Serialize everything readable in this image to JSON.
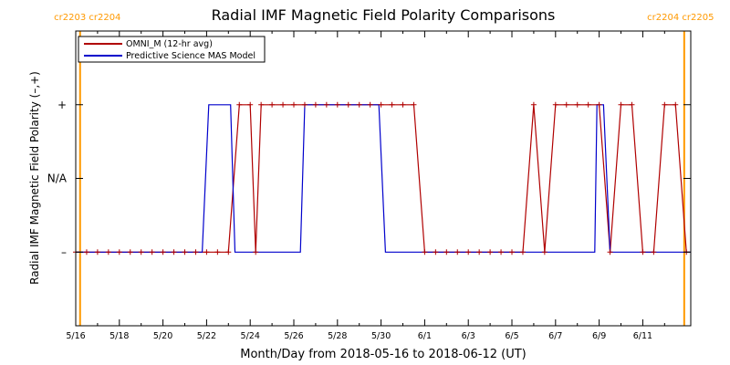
{
  "chart_data": {
    "type": "line",
    "title": "Radial IMF Magnetic Field Polarity Comparisons",
    "xlabel": "Month/Day from 2018-05-16 to 2018-06-12 (UT)",
    "ylabel": "Radial IMF Magnetic Field Polarity (–,+)",
    "x_range_days": [
      0,
      28.2
    ],
    "x_ticks": [
      {
        "day": 0,
        "label": "5/16"
      },
      {
        "day": 2,
        "label": "5/18"
      },
      {
        "day": 4,
        "label": "5/20"
      },
      {
        "day": 6,
        "label": "5/22"
      },
      {
        "day": 8,
        "label": "5/24"
      },
      {
        "day": 10,
        "label": "5/26"
      },
      {
        "day": 12,
        "label": "5/28"
      },
      {
        "day": 14,
        "label": "5/30"
      },
      {
        "day": 16,
        "label": "6/1"
      },
      {
        "day": 18,
        "label": "6/3"
      },
      {
        "day": 20,
        "label": "6/5"
      },
      {
        "day": 22,
        "label": "6/7"
      },
      {
        "day": 24,
        "label": "6/9"
      },
      {
        "day": 26,
        "label": "6/11"
      }
    ],
    "y_range": [
      -2,
      2
    ],
    "y_ticks": [
      {
        "value": 1,
        "label": "+"
      },
      {
        "value": 0,
        "label": "N/A"
      },
      {
        "value": -1,
        "label": "–"
      }
    ],
    "legend_position": "top-left",
    "colors": {
      "omni": "#b00000",
      "model": "#0000cc",
      "cr_line": "#ff9900"
    },
    "carrington_boundaries": [
      {
        "day": 0.2,
        "label": "cr2203 cr2204"
      },
      {
        "day": 27.9,
        "label": "cr2204 cr2205"
      }
    ],
    "series": [
      {
        "name": "OMNI_M (12-hr avg)",
        "color": "#b00000",
        "markers": true,
        "points": [
          [
            0.0,
            -1
          ],
          [
            0.5,
            -1
          ],
          [
            1.0,
            -1
          ],
          [
            1.5,
            -1
          ],
          [
            2.0,
            -1
          ],
          [
            2.5,
            -1
          ],
          [
            3.0,
            -1
          ],
          [
            3.5,
            -1
          ],
          [
            4.0,
            -1
          ],
          [
            4.5,
            -1
          ],
          [
            5.0,
            -1
          ],
          [
            5.5,
            -1
          ],
          [
            6.0,
            -1
          ],
          [
            6.5,
            -1
          ],
          [
            7.0,
            -1
          ],
          [
            7.5,
            1
          ],
          [
            8.0,
            1
          ],
          [
            8.25,
            -1
          ],
          [
            8.5,
            1
          ],
          [
            9.0,
            1
          ],
          [
            9.5,
            1
          ],
          [
            10.0,
            1
          ],
          [
            10.5,
            1
          ],
          [
            11.0,
            1
          ],
          [
            11.5,
            1
          ],
          [
            12.0,
            1
          ],
          [
            12.5,
            1
          ],
          [
            13.0,
            1
          ],
          [
            13.5,
            1
          ],
          [
            14.0,
            1
          ],
          [
            14.5,
            1
          ],
          [
            15.0,
            1
          ],
          [
            15.5,
            1
          ],
          [
            16.0,
            -1
          ],
          [
            16.5,
            -1
          ],
          [
            17.0,
            -1
          ],
          [
            17.5,
            -1
          ],
          [
            18.0,
            -1
          ],
          [
            18.5,
            -1
          ],
          [
            19.0,
            -1
          ],
          [
            19.5,
            -1
          ],
          [
            20.0,
            -1
          ],
          [
            20.5,
            -1
          ],
          [
            21.0,
            1
          ],
          [
            21.5,
            -1
          ],
          [
            22.0,
            1
          ],
          [
            22.5,
            1
          ],
          [
            23.0,
            1
          ],
          [
            23.5,
            1
          ],
          [
            24.0,
            1
          ],
          [
            24.5,
            -1
          ],
          [
            25.0,
            1
          ],
          [
            25.5,
            1
          ],
          [
            26.0,
            -1
          ],
          [
            26.5,
            -1
          ],
          [
            27.0,
            1
          ],
          [
            27.5,
            1
          ],
          [
            28.0,
            -1
          ]
        ]
      },
      {
        "name": "Predictive Science MAS Model",
        "color": "#0000cc",
        "markers": false,
        "points": [
          [
            0.0,
            -1
          ],
          [
            5.8,
            -1
          ],
          [
            6.1,
            1
          ],
          [
            7.1,
            1
          ],
          [
            7.3,
            -1
          ],
          [
            8.4,
            -1
          ],
          [
            8.6,
            -1
          ],
          [
            10.3,
            -1
          ],
          [
            10.5,
            1
          ],
          [
            13.9,
            1
          ],
          [
            14.2,
            -1
          ],
          [
            23.8,
            -1
          ],
          [
            23.9,
            1
          ],
          [
            24.2,
            1
          ],
          [
            24.5,
            -1
          ],
          [
            28.2,
            -1
          ]
        ]
      }
    ]
  }
}
